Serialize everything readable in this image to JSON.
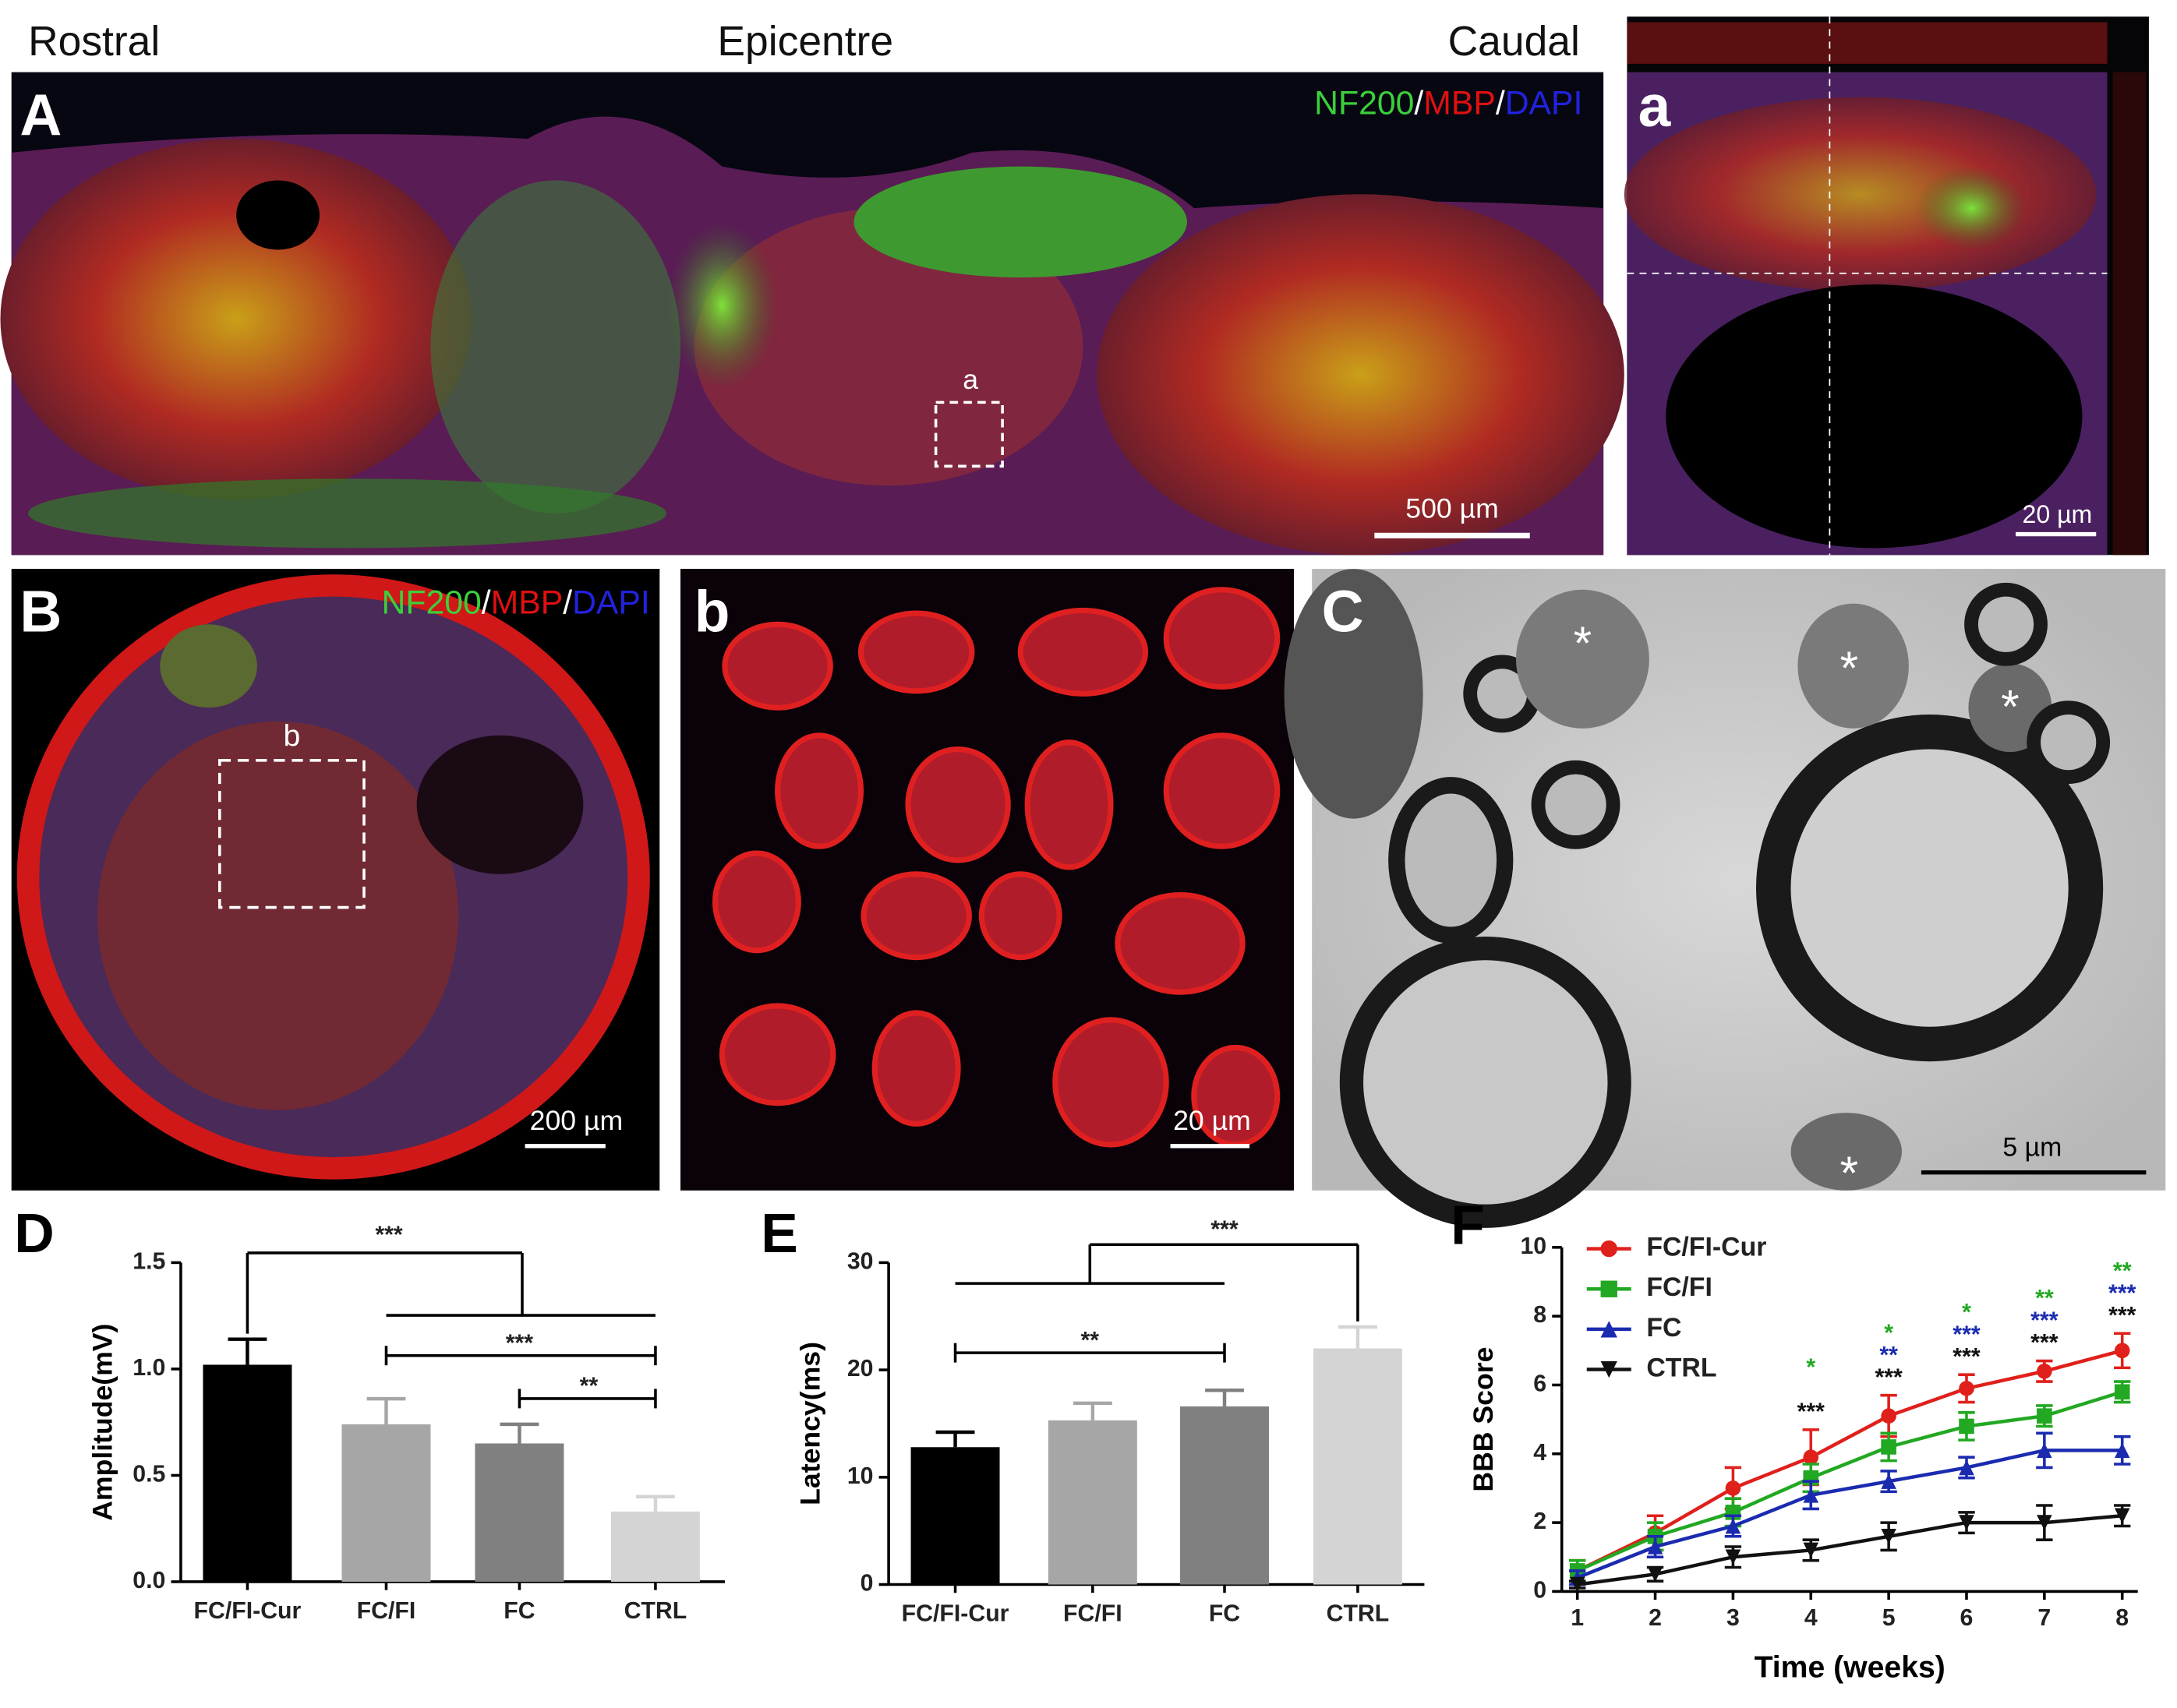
{
  "figure": {
    "labels": {
      "rostral": "Rostral",
      "epicentre": "Epicentre",
      "caudal": "Caudal"
    },
    "panel_A": {
      "letter": "A",
      "stain": [
        "NF200",
        "/",
        "MBP",
        "/",
        "DAPI"
      ],
      "inset": "a",
      "scale": "500 µm"
    },
    "panel_a": {
      "letter": "a",
      "scale": "20 µm"
    },
    "panel_B": {
      "letter": "B",
      "stain": [
        "NF200",
        "/",
        "MBP",
        "/",
        "DAPI"
      ],
      "inset": "b",
      "scale": "200 µm"
    },
    "panel_b": {
      "letter": "b",
      "scale": "20 µm"
    },
    "panel_C": {
      "letter": "C",
      "marker": "*",
      "scale": "5 µm"
    }
  },
  "chart_data": [
    {
      "type": "bar",
      "panel": "D",
      "y_label": "Amplitude(mV)",
      "categories": [
        "FC/FI-Cur",
        "FC/FI",
        "FC",
        "CTRL"
      ],
      "values": [
        1.02,
        0.74,
        0.65,
        0.33
      ],
      "errors": [
        0.12,
        0.12,
        0.09,
        0.07
      ],
      "colors": [
        "#000000",
        "#a6a6a6",
        "#808080",
        "#d4d4d4"
      ],
      "ylim": [
        0,
        1.5
      ],
      "yticks": [
        {
          "value": 0,
          "label": "0.0"
        },
        {
          "value": 0.5,
          "label": "0.5"
        },
        {
          "value": 1,
          "label": "1.0"
        },
        {
          "value": 1.5,
          "label": "1.5"
        }
      ],
      "annotations": [
        "***",
        "***",
        "**"
      ]
    },
    {
      "type": "bar",
      "panel": "E",
      "y_label": "Latency(ms)",
      "categories": [
        "FC/FI-Cur",
        "FC/FI",
        "FC",
        "CTRL"
      ],
      "values": [
        12.8,
        15.3,
        16.6,
        22
      ],
      "errors": [
        1.4,
        1.6,
        1.5,
        2
      ],
      "colors": [
        "#000000",
        "#a6a6a6",
        "#808080",
        "#d4d4d4"
      ],
      "ylim": [
        0,
        30
      ],
      "yticks": [
        0,
        10,
        20,
        30
      ],
      "annotations": [
        "***",
        "**"
      ]
    },
    {
      "type": "line",
      "panel": "F",
      "x_label": "Time (weeks)",
      "y_label": "BBB Score",
      "x": [
        1,
        2,
        3,
        4,
        5,
        6,
        7,
        8
      ],
      "xlim": [
        0.8,
        8.2
      ],
      "xticks": [
        1,
        2,
        3,
        4,
        5,
        6,
        7,
        8
      ],
      "ylim": [
        0,
        10
      ],
      "yticks": [
        0,
        2,
        4,
        6,
        8,
        10
      ],
      "series": [
        {
          "name": "FC/FI-Cur",
          "color": "#e0201b",
          "marker": "circle",
          "values": [
            0.6,
            1.7,
            3.0,
            3.9,
            5.1,
            5.9,
            6.4,
            7.0
          ],
          "errors": [
            0.3,
            0.5,
            0.6,
            0.8,
            0.6,
            0.4,
            0.3,
            0.5
          ]
        },
        {
          "name": "FC/FI",
          "color": "#22a822",
          "marker": "square",
          "values": [
            0.6,
            1.6,
            2.3,
            3.3,
            4.2,
            4.8,
            5.1,
            5.8
          ],
          "errors": [
            0.3,
            0.4,
            0.4,
            0.4,
            0.4,
            0.4,
            0.3,
            0.3
          ],
          "significance": [
            null,
            null,
            null,
            "*",
            "*",
            "*",
            "**",
            "**"
          ]
        },
        {
          "name": "FC",
          "color": "#1a2bb0",
          "marker": "triangle",
          "values": [
            0.4,
            1.3,
            1.9,
            2.8,
            3.2,
            3.6,
            4.1,
            4.1
          ],
          "errors": [
            0.2,
            0.3,
            0.3,
            0.4,
            0.3,
            0.3,
            0.5,
            0.4
          ],
          "significance": [
            null,
            null,
            null,
            null,
            "**",
            "***",
            "***",
            "***"
          ]
        },
        {
          "name": "CTRL",
          "color": "#111111",
          "marker": "triangle-down",
          "values": [
            0.2,
            0.5,
            1.0,
            1.2,
            1.6,
            2.0,
            2.0,
            2.2
          ],
          "errors": [
            0.1,
            0.2,
            0.3,
            0.3,
            0.4,
            0.3,
            0.5,
            0.3
          ],
          "significance": [
            null,
            null,
            null,
            "***",
            "***",
            "***",
            "***",
            "***"
          ]
        }
      ]
    }
  ]
}
